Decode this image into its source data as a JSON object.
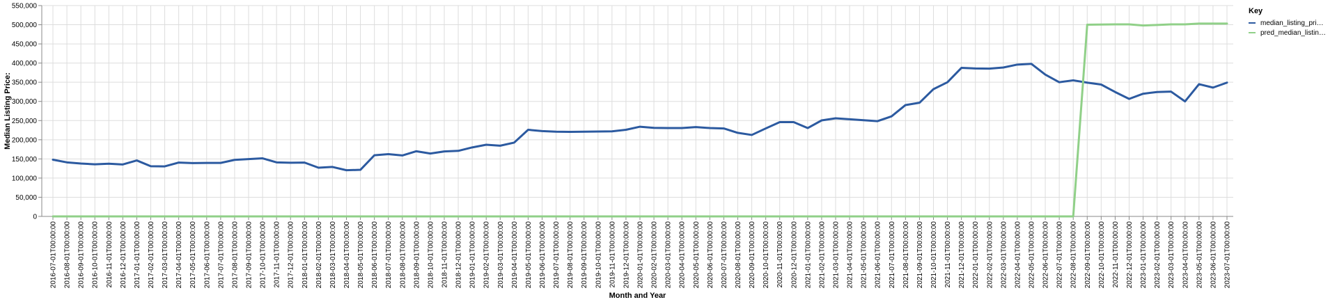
{
  "chart_data": {
    "type": "line",
    "xlabel": "Month and Year",
    "ylabel": "Median Listing Price:",
    "ylim": [
      0,
      550000
    ],
    "yticks": [
      0,
      50000,
      100000,
      150000,
      200000,
      250000,
      300000,
      350000,
      400000,
      450000,
      500000,
      550000
    ],
    "ytick_labels": [
      "0",
      "50,000",
      "100,000",
      "150,000",
      "200,000",
      "250,000",
      "300,000",
      "350,000",
      "400,000",
      "450,000",
      "500,000",
      "550,000"
    ],
    "grid": true,
    "legend": {
      "title": "Key",
      "placement": "top-right",
      "entries": [
        "median_listing_pri…",
        "pred_median_listin…"
      ]
    },
    "x": [
      "2016-07-01T00:00:00",
      "2016-08-01T00:00:00",
      "2016-09-01T00:00:00",
      "2016-10-01T00:00:00",
      "2016-11-01T00:00:00",
      "2016-12-01T00:00:00",
      "2017-01-01T00:00:00",
      "2017-02-01T00:00:00",
      "2017-03-01T00:00:00",
      "2017-04-01T00:00:00",
      "2017-05-01T00:00:00",
      "2017-06-01T00:00:00",
      "2017-07-01T00:00:00",
      "2017-08-01T00:00:00",
      "2017-09-01T00:00:00",
      "2017-10-01T00:00:00",
      "2017-11-01T00:00:00",
      "2017-12-01T00:00:00",
      "2018-01-01T00:00:00",
      "2018-02-01T00:00:00",
      "2018-03-01T00:00:00",
      "2018-04-01T00:00:00",
      "2018-05-01T00:00:00",
      "2018-06-01T00:00:00",
      "2018-07-01T00:00:00",
      "2018-08-01T00:00:00",
      "2018-09-01T00:00:00",
      "2018-10-01T00:00:00",
      "2018-11-01T00:00:00",
      "2018-12-01T00:00:00",
      "2019-01-01T00:00:00",
      "2019-02-01T00:00:00",
      "2019-03-01T00:00:00",
      "2019-04-01T00:00:00",
      "2019-05-01T00:00:00",
      "2019-06-01T00:00:00",
      "2019-07-01T00:00:00",
      "2019-08-01T00:00:00",
      "2019-09-01T00:00:00",
      "2019-10-01T00:00:00",
      "2019-11-01T00:00:00",
      "2019-12-01T00:00:00",
      "2020-01-01T00:00:00",
      "2020-02-01T00:00:00",
      "2020-03-01T00:00:00",
      "2020-04-01T00:00:00",
      "2020-05-01T00:00:00",
      "2020-06-01T00:00:00",
      "2020-07-01T00:00:00",
      "2020-08-01T00:00:00",
      "2020-09-01T00:00:00",
      "2020-10-01T00:00:00",
      "2020-11-01T00:00:00",
      "2020-12-01T00:00:00",
      "2021-01-01T00:00:00",
      "2021-02-01T00:00:00",
      "2021-03-01T00:00:00",
      "2021-04-01T00:00:00",
      "2021-05-01T00:00:00",
      "2021-06-01T00:00:00",
      "2021-07-01T00:00:00",
      "2021-08-01T00:00:00",
      "2021-09-01T00:00:00",
      "2021-10-01T00:00:00",
      "2021-11-01T00:00:00",
      "2021-12-01T00:00:00",
      "2022-01-01T00:00:00",
      "2022-02-01T00:00:00",
      "2022-03-01T00:00:00",
      "2022-04-01T00:00:00",
      "2022-05-01T00:00:00",
      "2022-06-01T00:00:00",
      "2022-07-01T00:00:00",
      "2022-08-01T00:00:00",
      "2022-09-01T00:00:00",
      "2022-10-01T00:00:00",
      "2022-11-01T00:00:00",
      "2022-12-01T00:00:00",
      "2023-01-01T00:00:00",
      "2023-02-01T00:00:00",
      "2023-03-01T00:00:00",
      "2023-04-01T00:00:00",
      "2023-05-01T00:00:00",
      "2023-06-01T00:00:00",
      "2023-07-01T00:00:00"
    ],
    "series": [
      {
        "name": "median_listing_pri…",
        "color": "#2c5aa0",
        "values": [
          148000,
          141000,
          138000,
          136000,
          137500,
          135500,
          146000,
          131000,
          130500,
          140500,
          139000,
          139500,
          139500,
          147500,
          149500,
          151500,
          141000,
          140000,
          140500,
          127000,
          129000,
          120500,
          121500,
          159500,
          162500,
          159000,
          170000,
          164000,
          169500,
          171000,
          180000,
          187000,
          184500,
          192500,
          226000,
          222500,
          221000,
          220500,
          221000,
          221500,
          222000,
          226000,
          234000,
          231000,
          230500,
          230500,
          233000,
          230500,
          229500,
          218000,
          212500,
          229500,
          246000,
          246000,
          230500,
          250500,
          256000,
          253500,
          251000,
          248500,
          261000,
          290500,
          296500,
          332000,
          350000,
          387500,
          386000,
          385500,
          388500,
          396000,
          398000,
          370000,
          350000,
          355000,
          349000,
          344000,
          324500,
          306500,
          320000,
          324500,
          325500,
          300000,
          345000,
          336000,
          349000
        ]
      },
      {
        "name": "pred_median_listin…",
        "color": "#90d088",
        "values": [
          0,
          0,
          0,
          0,
          0,
          0,
          0,
          0,
          0,
          0,
          0,
          0,
          0,
          0,
          0,
          0,
          0,
          0,
          0,
          0,
          0,
          0,
          0,
          0,
          0,
          0,
          0,
          0,
          0,
          0,
          0,
          0,
          0,
          0,
          0,
          0,
          0,
          0,
          0,
          0,
          0,
          0,
          0,
          0,
          0,
          0,
          0,
          0,
          0,
          0,
          0,
          0,
          0,
          0,
          0,
          0,
          0,
          0,
          0,
          0,
          0,
          0,
          0,
          0,
          0,
          0,
          0,
          0,
          0,
          0,
          0,
          0,
          0,
          0,
          500000,
          500500,
          501000,
          501000,
          498000,
          499500,
          501000,
          501000,
          503000,
          503000,
          503000
        ]
      }
    ]
  }
}
